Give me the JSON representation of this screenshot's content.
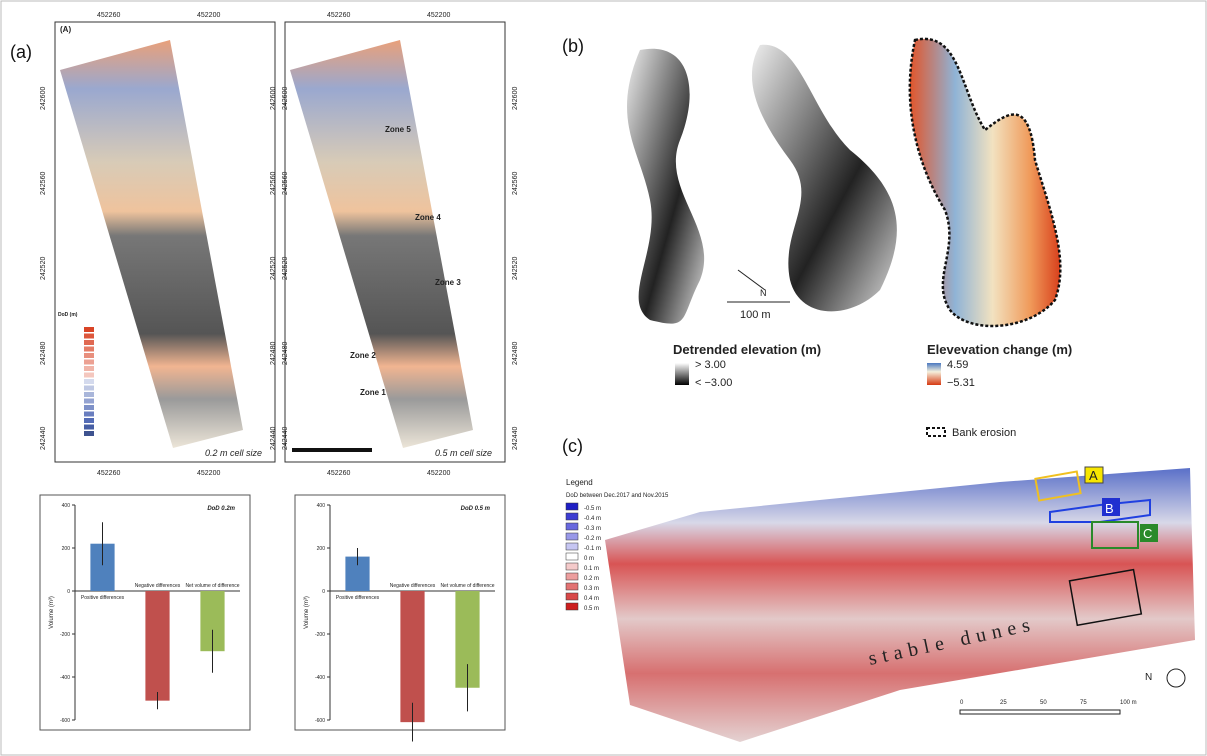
{
  "panel_a": {
    "label": "(a)",
    "map_tag": "(A)",
    "x_labels": [
      "452260",
      "452200"
    ],
    "y_labels": [
      "242600",
      "242560",
      "242520",
      "242480",
      "242440"
    ],
    "legend_title": "DoD (m)",
    "zones": [
      "Zone 5",
      "Zone 4",
      "Zone 3",
      "Zone 2",
      "Zone 1"
    ],
    "cell_sizes": [
      "0.2 m cell size",
      "0.5 m cell size"
    ],
    "bar_charts": [
      {
        "type": "bar",
        "title": "DoD 0.2m",
        "ylabel": "Volume (m³)",
        "categories": [
          "Positive differences",
          "Negative differences",
          "Net volume of difference"
        ],
        "values": [
          220,
          -510,
          -280
        ],
        "errors": [
          100,
          40,
          100
        ],
        "colors": [
          "#4f81bd",
          "#c0504d",
          "#9bbb59"
        ],
        "ylim": [
          -600,
          400
        ],
        "yticks": [
          400,
          200,
          0,
          -200,
          -400,
          -600
        ]
      },
      {
        "type": "bar",
        "title": "DoD 0.5 m",
        "ylabel": "Volume (m³)",
        "categories": [
          "Positive differences",
          "Negative differences",
          "Net volume of difference"
        ],
        "values": [
          160,
          -610,
          -450
        ],
        "errors": [
          40,
          90,
          110
        ],
        "colors": [
          "#4f81bd",
          "#c0504d",
          "#9bbb59"
        ],
        "ylim": [
          -600,
          400
        ],
        "yticks": [
          400,
          200,
          0,
          -200,
          -400,
          -600
        ]
      }
    ]
  },
  "panel_b": {
    "label": "(b)",
    "scale": "100 m",
    "north": "N",
    "detrended_title": "Detrended elevation (m)",
    "detrended_max": "> 3.00",
    "detrended_min": "< −3.00",
    "change_title": "Elevevation change (m)",
    "change_max": "4.59",
    "change_min": "−5.31",
    "bank_erosion": "Bank erosion"
  },
  "panel_c": {
    "label": "(c)",
    "legend_title": "Legend",
    "legend_subtitle": "DoD between Dec.2017 and Nov.2015",
    "legend": [
      {
        "label": "-0.5 m",
        "color": "#1f1fc4"
      },
      {
        "label": "-0.4 m",
        "color": "#3d3dd2"
      },
      {
        "label": "-0.3 m",
        "color": "#6868de"
      },
      {
        "label": "-0.2 m",
        "color": "#9898e8"
      },
      {
        "label": "-0.1 m",
        "color": "#c6c6f2"
      },
      {
        "label": "0 m",
        "color": "#ffffff"
      },
      {
        "label": "0.1 m",
        "color": "#f4caca"
      },
      {
        "label": "0.2 m",
        "color": "#ec9e9e"
      },
      {
        "label": "0.3 m",
        "color": "#e27272"
      },
      {
        "label": "0.4 m",
        "color": "#d84848"
      },
      {
        "label": "0.5 m",
        "color": "#cc1e1e"
      }
    ],
    "boxes": [
      "A",
      "B",
      "C"
    ],
    "annotation": "stable dunes",
    "scale_labels": [
      "0",
      "25",
      "50",
      "75",
      "100 m"
    ],
    "north": "N"
  }
}
